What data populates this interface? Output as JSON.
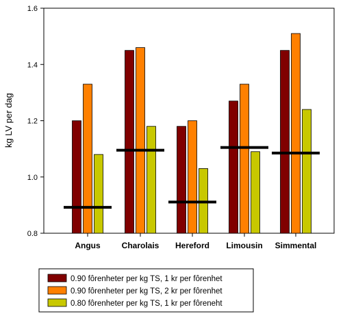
{
  "chart_data": {
    "type": "bar",
    "title": "",
    "xlabel": "",
    "ylabel": "kg LV per dag",
    "ylim": [
      0.8,
      1.6
    ],
    "yticks": [
      "0.8",
      "1.0",
      "1.2",
      "1.4",
      "1.6"
    ],
    "ytick_values": [
      0.8,
      1.0,
      1.2,
      1.4,
      1.6
    ],
    "grid": false,
    "legend_position": "bottom",
    "categories": [
      "Angus",
      "Charolais",
      "Hereford",
      "Limousin",
      "Simmental"
    ],
    "series": [
      {
        "name": "0.90 fôrenheter per kg TS, 1 kr per fôrenhet",
        "color": "#800000",
        "values": [
          1.2,
          1.45,
          1.18,
          1.27,
          1.45
        ]
      },
      {
        "name": "0.90 fôrenheter per kg TS, 2 kr per fôrenhet",
        "color": "#ff8000",
        "values": [
          1.33,
          1.46,
          1.2,
          1.33,
          1.51
        ]
      },
      {
        "name": "0.80 fôrenheter per kg TS, 1 kr per fôreneht",
        "color": "#c8c800",
        "values": [
          1.08,
          1.18,
          1.03,
          1.09,
          1.24
        ]
      }
    ],
    "reference_lines": [
      0.892,
      1.095,
      0.911,
      1.105,
      1.085
    ]
  }
}
